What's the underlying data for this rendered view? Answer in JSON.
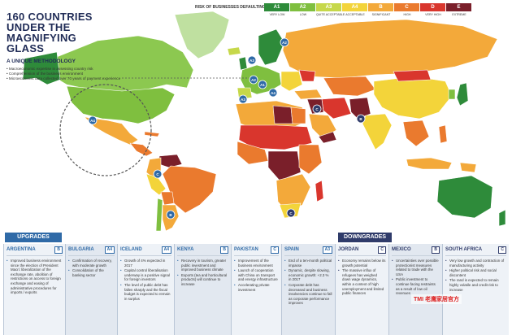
{
  "title_lines": [
    "160 COUNTRIES",
    "UNDER THE",
    "MAGNIFYING",
    "GLASS"
  ],
  "subtitle": "A UNIQUE METHODOLOGY",
  "bullets": [
    "Macroeconomic expertise in assessing country risk",
    "Comprehension of the business environment",
    "Microeconomic data collected over 70 years of payment experience"
  ],
  "legend": {
    "title": "RISK OF BUSINESSES DEFAULTING",
    "items": [
      {
        "grade": "A1",
        "label": "VERY LOW",
        "color": "#2e8b3a"
      },
      {
        "grade": "A2",
        "label": "LOW",
        "color": "#7fbf3f"
      },
      {
        "grade": "A3",
        "label": "QUITE ACCEPTABLE",
        "color": "#c6d84a"
      },
      {
        "grade": "A4",
        "label": "ACCEPTABLE",
        "color": "#f3d43a"
      },
      {
        "grade": "B",
        "label": "SIGNIFICANT",
        "color": "#f3a93a"
      },
      {
        "grade": "C",
        "label": "HIGH",
        "color": "#ea7a2e"
      },
      {
        "grade": "D",
        "label": "VERY HIGH",
        "color": "#d9362d"
      },
      {
        "grade": "E",
        "label": "EXTREME",
        "color": "#7a1f2a"
      }
    ]
  },
  "map_labels": [
    {
      "text": "A3",
      "bg": "#2f6aa7"
    },
    {
      "text": "A2",
      "bg": "#2f6aa7"
    },
    {
      "text": "A1",
      "bg": "#2f6aa7"
    },
    {
      "text": "A4",
      "bg": "#2f6aa7"
    },
    {
      "text": "A3",
      "bg": "#2f6aa7"
    },
    {
      "text": "A2",
      "bg": "#2f6aa7"
    },
    {
      "text": "A4",
      "bg": "#2f6aa7"
    },
    {
      "text": "B",
      "bg": "#2f6aa7"
    },
    {
      "text": "C",
      "bg": "#2f6aa7"
    },
    {
      "text": "B",
      "bg": "#2f3b6a"
    },
    {
      "text": "C",
      "bg": "#2f3b6a"
    },
    {
      "text": "C",
      "bg": "#2f3b6a"
    }
  ],
  "upgrades_label": "UPGRADES",
  "downgrades_label": "DOWNGRADES",
  "panels": [
    {
      "name": "ARGENTINA",
      "grade": "B",
      "kind": "up",
      "items": [
        "Improved business environment since the election of President Macri: liberalization of the exchange rate, abolition of restrictions on access to foreign exchange and easing of administrative procedures for imports / exports"
      ]
    },
    {
      "name": "BULGARIA",
      "grade": "A4",
      "kind": "up",
      "items": [
        "Confirmation of recovery, with moderate growth",
        "Consolidation of the banking sector"
      ]
    },
    {
      "name": "ICELAND",
      "grade": "A4",
      "kind": "up",
      "items": [
        "Growth of 4% expected in 2017",
        "Capital control liberalisation underway is a positive signal for foreign investors",
        "The level of public debt has fallen sharply and the fiscal budget is expected to remain in surplus"
      ]
    },
    {
      "name": "KENYA",
      "grade": "B",
      "kind": "up",
      "items": [
        "Recovery in tourism, greater public investment and improved business climate",
        "Exports (tea and horticultural products) will continue to increase"
      ]
    },
    {
      "name": "PAKISTAN",
      "grade": "C",
      "kind": "up",
      "items": [
        "Improvement of the business environment",
        "Launch of cooperation with China on transport and energy infrastructure",
        "Accelerating private investment"
      ]
    },
    {
      "name": "SPAIN",
      "grade": "A3",
      "kind": "up",
      "items": [
        "End of a ten-month political impasse",
        "Dynamic, despite slowing, economic growth: +2.3 % in 2017",
        "Corporate debt has decreased and business insolvencies continue to fall as corporate performance improves"
      ]
    },
    {
      "name": "JORDAN",
      "grade": "C",
      "kind": "down",
      "items": [
        "Economy remains below its growth potential",
        "The massive influx of refugees has weighed down wage dynamics, within a context of high unemployment and limited public finances"
      ]
    },
    {
      "name": "MEXICO",
      "grade": "B",
      "kind": "down",
      "items": [
        "Uncertainties over possible protectionist measures related to trade with the USA",
        "Public investment to continue facing restraints as a result of low oil revenues"
      ]
    },
    {
      "name": "SOUTH AFRICA",
      "grade": "C",
      "kind": "down",
      "items": [
        "Very low growth and contraction of manufacturing activity",
        "Higher political risk and social discontent",
        "The rand is expected to remain highly volatile and credit risk to increase"
      ]
    }
  ],
  "watermark": "TMI 老鹰家居官方"
}
